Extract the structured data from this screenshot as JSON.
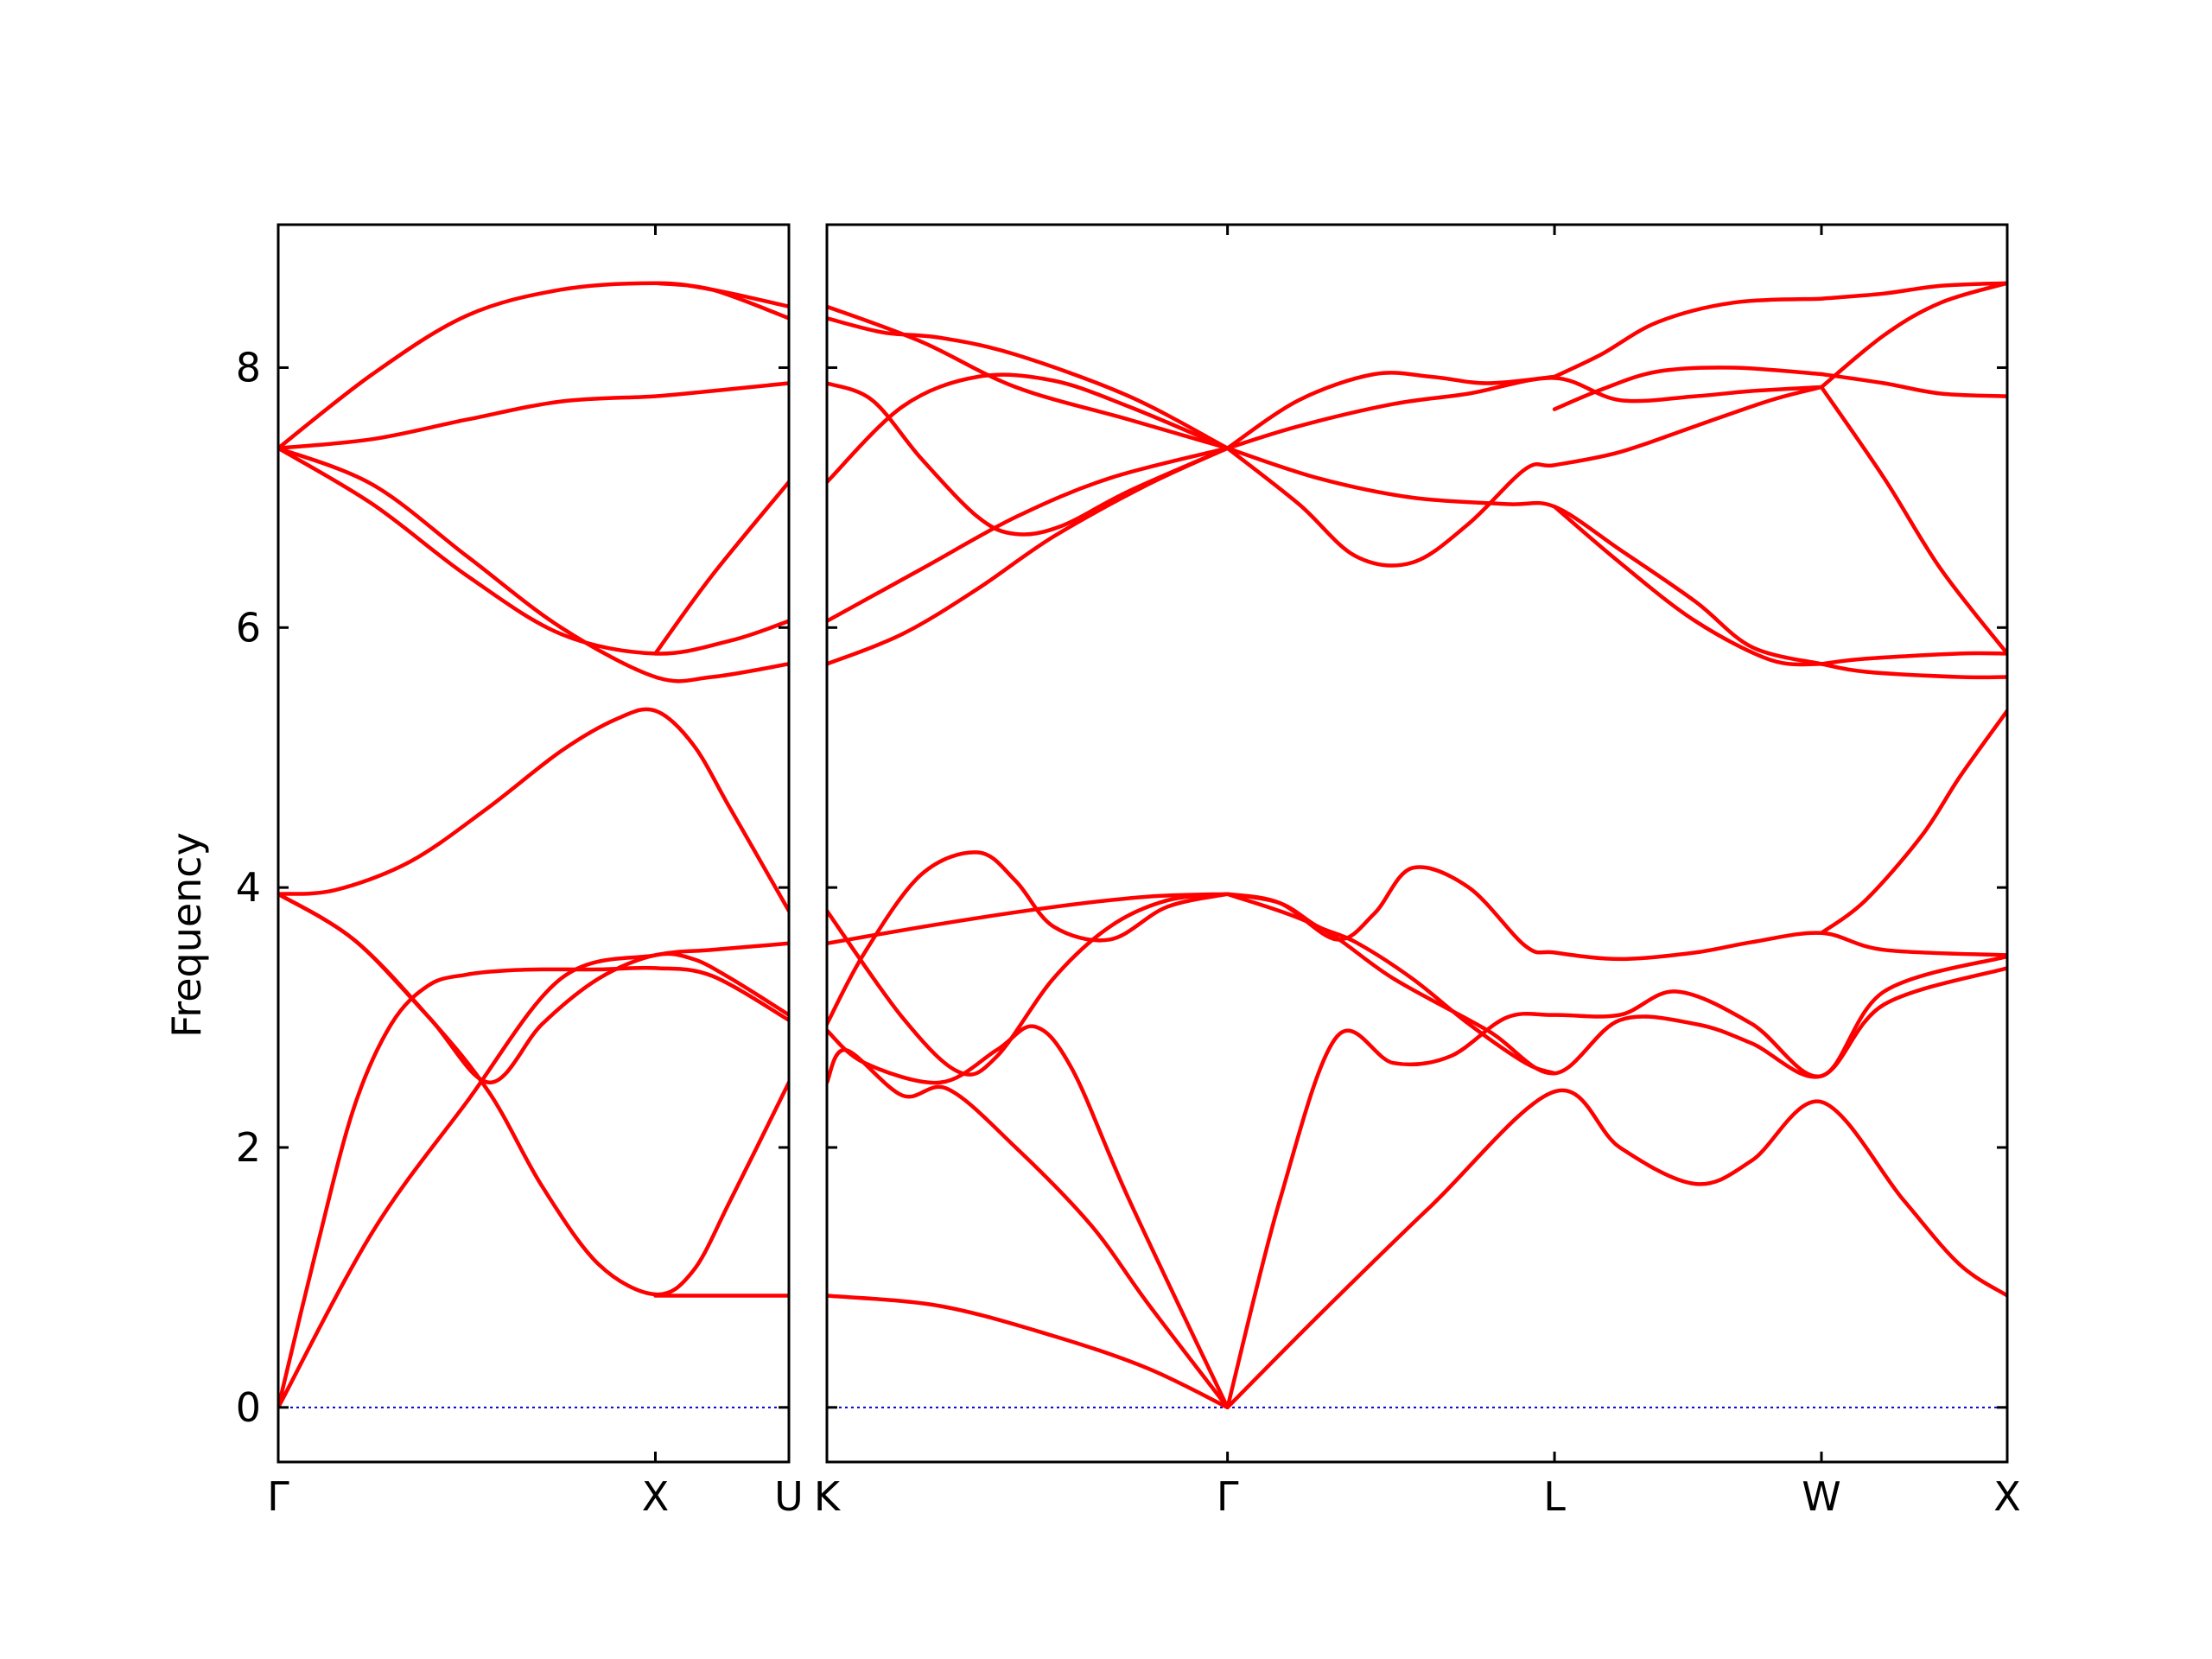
{
  "chart_data": {
    "type": "line",
    "title": "",
    "ylabel": "Frequency",
    "ylim": [
      -0.42,
      9.1
    ],
    "yticks": [
      0,
      2,
      4,
      6,
      8
    ],
    "grid": false,
    "legend": "none",
    "colors": {
      "bands": "#ff0000",
      "zero_line": "#0000cc",
      "frame": "#000000"
    },
    "panels": [
      {
        "id": "panel-1",
        "xlim": [
          0,
          1.354
        ],
        "xticks": [
          {
            "x": 0,
            "label": "Γ"
          },
          {
            "x": 1.0,
            "label": "X"
          },
          {
            "x": 1.354,
            "label": "U"
          }
        ],
        "zero_line": true,
        "series": [
          {
            "x": [
              0,
              0.25,
              0.5,
              0.75,
              1.0,
              1.15,
              1.354
            ],
            "y": [
              0,
              1.35,
              2.35,
              3.3,
              3.48,
              3.52,
              3.57
            ]
          },
          {
            "x": [
              0,
              0.1,
              0.2,
              0.3,
              0.4,
              0.5,
              0.6,
              0.7,
              0.85,
              1.0,
              1.15,
              1.354
            ],
            "y": [
              0,
              1.2,
              2.3,
              2.95,
              3.25,
              3.33,
              3.36,
              3.37,
              3.37,
              3.38,
              3.32,
              2.98
            ]
          },
          {
            "x": [
              0,
              0.2,
              0.4,
              0.56,
              0.7,
              0.85,
              1.0,
              1.1,
              1.2,
              1.354
            ],
            "y": [
              3.95,
              3.6,
              3.0,
              2.5,
              2.95,
              3.3,
              3.48,
              3.45,
              3.3,
              3.02
            ]
          },
          {
            "x": [
              0,
              0.2,
              0.4,
              0.56,
              0.7,
              0.85,
              1.0,
              1.1,
              1.2,
              1.354
            ],
            "y": [
              3.95,
              3.6,
              3.0,
              2.42,
              1.7,
              1.1,
              0.87,
              1.05,
              1.6,
              2.5
            ]
          },
          {
            "x": [
              0,
              0.15,
              0.35,
              0.55,
              0.75,
              0.9,
              1.0,
              1.1,
              1.2,
              1.354
            ],
            "y": [
              3.95,
              3.98,
              4.2,
              4.6,
              5.05,
              5.3,
              5.36,
              5.1,
              4.6,
              3.82
            ]
          },
          {
            "x": [
              1.0,
              1.2,
              1.354
            ],
            "y": [
              0.86,
              0.86,
              0.86
            ]
          },
          {
            "x": [
              0,
              0.25,
              0.5,
              0.75,
              1.0,
              1.15,
              1.354
            ],
            "y": [
              7.38,
              7.45,
              7.6,
              7.74,
              7.78,
              7.82,
              7.88
            ]
          },
          {
            "x": [
              0,
              0.25,
              0.5,
              0.75,
              1.0,
              1.15,
              1.354
            ],
            "y": [
              7.38,
              7.95,
              8.4,
              8.6,
              8.65,
              8.6,
              8.47
            ]
          },
          {
            "x": [
              0,
              0.25,
              0.5,
              0.75,
              1.0,
              1.15,
              1.354
            ],
            "y": [
              7.38,
              7.1,
              6.55,
              6.0,
              5.62,
              5.62,
              5.72
            ]
          },
          {
            "x": [
              0,
              0.25,
              0.5,
              0.75,
              1.0,
              1.2,
              1.354
            ],
            "y": [
              7.38,
              6.95,
              6.4,
              5.95,
              5.8,
              5.9,
              6.05
            ]
          },
          {
            "x": [
              1.0,
              1.15,
              1.354
            ],
            "y": [
              5.8,
              6.4,
              7.12
            ]
          },
          {
            "x": [
              1.0,
              1.15,
              1.354
            ],
            "y": [
              8.65,
              8.6,
              8.38
            ]
          }
        ]
      },
      {
        "id": "panel-2",
        "xlim": [
          0,
          3.126
        ],
        "xticks": [
          {
            "x": 0,
            "label": "K"
          },
          {
            "x": 1.061,
            "label": "Γ"
          },
          {
            "x": 1.927,
            "label": "L"
          },
          {
            "x": 2.634,
            "label": "W"
          },
          {
            "x": 3.126,
            "label": "X"
          }
        ],
        "zero_line": true,
        "series": [
          {
            "x": [
              0,
              0.3,
              0.6,
              0.85,
              1.061
            ],
            "y": [
              0.86,
              0.78,
              0.55,
              0.3,
              0.0
            ]
          },
          {
            "x": [
              1.061,
              1.3,
              1.6,
              1.927,
              2.1,
              2.3,
              2.45,
              2.634,
              2.85,
              3.0,
              3.126
            ],
            "y": [
              0.0,
              0.7,
              1.55,
              2.43,
              2.0,
              1.72,
              1.9,
              2.35,
              1.6,
              1.1,
              0.86
            ]
          },
          {
            "x": [
              0,
              0.05,
              0.2,
              0.32,
              0.5,
              0.7,
              0.85,
              1.061
            ],
            "y": [
              2.5,
              2.75,
              2.4,
              2.45,
              2.0,
              1.4,
              0.8,
              0.0
            ]
          },
          {
            "x": [
              0,
              0.1,
              0.3,
              0.45,
              0.55,
              0.65,
              0.8,
              1.061
            ],
            "y": [
              2.9,
              2.65,
              2.5,
              2.75,
              2.93,
              2.6,
              1.6,
              0.0
            ]
          },
          {
            "x": [
              1.061,
              1.2,
              1.35,
              1.5,
              1.65,
              1.8,
              1.927,
              2.1,
              2.25,
              2.45,
              2.634,
              2.8,
              3.126
            ],
            "y": [
              0.0,
              1.6,
              2.85,
              2.65,
              2.7,
              3.0,
              3.02,
              3.02,
              3.2,
              2.95,
              2.55,
              3.2,
              3.47
            ]
          },
          {
            "x": [
              1.061,
              1.3,
              1.5,
              1.75,
              1.927,
              2.1,
              2.3,
              2.45,
              2.634,
              2.8,
              3.126
            ],
            "y": [
              3.95,
              3.7,
              3.3,
              2.9,
              2.57,
              2.98,
              2.95,
              2.8,
              2.55,
              3.1,
              3.38
            ]
          },
          {
            "x": [
              0,
              0.2,
              0.35,
              0.45,
              0.6,
              0.75,
              0.9,
              1.061
            ],
            "y": [
              3.82,
              3.0,
              2.58,
              2.7,
              3.3,
              3.7,
              3.9,
              3.95
            ]
          },
          {
            "x": [
              0,
              0.1,
              0.25,
              0.4,
              0.5,
              0.6,
              0.75,
              0.9,
              1.061
            ],
            "y": [
              2.95,
              3.5,
              4.1,
              4.27,
              4.05,
              3.7,
              3.6,
              3.85,
              3.95
            ]
          },
          {
            "x": [
              0,
              0.3,
              0.6,
              0.85,
              1.061
            ],
            "y": [
              3.57,
              3.72,
              3.85,
              3.93,
              3.95
            ]
          },
          {
            "x": [
              1.061,
              1.2,
              1.35,
              1.45,
              1.55,
              1.7,
              1.85,
              1.927,
              2.1,
              2.3,
              2.45,
              2.634,
              2.8,
              3.126
            ],
            "y": [
              3.95,
              3.88,
              3.6,
              3.8,
              4.15,
              4.0,
              3.55,
              3.5,
              3.45,
              3.5,
              3.58,
              3.65,
              3.52,
              3.48
            ]
          },
          {
            "x": [
              1.061,
              1.2,
              1.3,
              1.4,
              1.55,
              1.7,
              1.85,
              1.927
            ],
            "y": [
              3.95,
              3.88,
              3.7,
              3.58,
              3.3,
              2.95,
              2.65,
              2.57
            ]
          },
          {
            "x": [
              2.634,
              2.75,
              2.9,
              3.0,
              3.126
            ],
            "y": [
              3.65,
              3.9,
              4.4,
              4.85,
              5.36
            ]
          },
          {
            "x": [
              0,
              0.2,
              0.4,
              0.6,
              0.85,
              1.061
            ],
            "y": [
              5.72,
              5.95,
              6.3,
              6.7,
              7.1,
              7.38
            ]
          },
          {
            "x": [
              0,
              0.25,
              0.5,
              0.75,
              1.061
            ],
            "y": [
              6.05,
              6.45,
              6.85,
              7.15,
              7.38
            ]
          },
          {
            "x": [
              0,
              0.2,
              0.4,
              0.6,
              0.8,
              1.061
            ],
            "y": [
              7.12,
              7.7,
              7.93,
              7.9,
              7.7,
              7.38
            ]
          },
          {
            "x": [
              0,
              0.12,
              0.25,
              0.4,
              0.5,
              0.62,
              0.8,
              1.061
            ],
            "y": [
              7.88,
              7.75,
              7.3,
              6.85,
              6.72,
              6.78,
              7.05,
              7.38
            ]
          },
          {
            "x": [
              0,
              0.25,
              0.5,
              0.8,
              1.061
            ],
            "y": [
              8.47,
              8.2,
              7.85,
              7.6,
              7.38
            ]
          },
          {
            "x": [
              0,
              0.15,
              0.3,
              0.5,
              0.8,
              1.061
            ],
            "y": [
              8.38,
              8.27,
              8.23,
              8.1,
              7.78,
              7.38
            ]
          },
          {
            "x": [
              1.061,
              1.25,
              1.5,
              1.7,
              1.927,
              2.1,
              2.3,
              2.45,
              2.634
            ],
            "y": [
              7.38,
              7.55,
              7.72,
              7.8,
              7.92,
              7.75,
              7.78,
              7.82,
              7.85
            ]
          },
          {
            "x": [
              1.061,
              1.25,
              1.45,
              1.6,
              1.75,
              1.927
            ],
            "y": [
              7.38,
              7.75,
              7.95,
              7.93,
              7.88,
              7.93
            ]
          },
          {
            "x": [
              1.061,
              1.3,
              1.55,
              1.8,
              1.927,
              2.1,
              2.3,
              2.45,
              2.634
            ],
            "y": [
              7.38,
              7.15,
              7.0,
              6.95,
              6.93,
              6.6,
              6.2,
              5.85,
              5.72
            ]
          },
          {
            "x": [
              1.061,
              1.25,
              1.4,
              1.55,
              1.7,
              1.85,
              1.927,
              2.1,
              2.3,
              2.5,
              2.634
            ],
            "y": [
              7.38,
              6.95,
              6.55,
              6.5,
              6.8,
              7.22,
              7.25,
              7.35,
              7.55,
              7.75,
              7.85
            ]
          },
          {
            "x": [
              1.927,
              2.1,
              2.3,
              2.5,
              2.634
            ],
            "y": [
              6.93,
              6.5,
              6.05,
              5.75,
              5.72
            ]
          },
          {
            "x": [
              1.927,
              2.05,
              2.2,
              2.4,
              2.634
            ],
            "y": [
              7.93,
              8.1,
              8.35,
              8.5,
              8.53
            ]
          },
          {
            "x": [
              1.927,
              2.05,
              2.2,
              2.4,
              2.634
            ],
            "y": [
              7.68,
              7.83,
              7.97,
              8.0,
              7.95
            ]
          },
          {
            "x": [
              2.634,
              2.8,
              2.95,
              3.126
            ],
            "y": [
              7.85,
              8.25,
              8.5,
              8.65
            ]
          },
          {
            "x": [
              2.634,
              2.8,
              2.95,
              3.126
            ],
            "y": [
              7.85,
              7.15,
              6.45,
              5.8
            ]
          },
          {
            "x": [
              2.634,
              2.8,
              2.95,
              3.126
            ],
            "y": [
              7.95,
              7.88,
              7.8,
              7.78
            ]
          },
          {
            "x": [
              2.634,
              2.75,
              3.0,
              3.126
            ],
            "y": [
              5.72,
              5.66,
              5.62,
              5.62
            ]
          },
          {
            "x": [
              2.634,
              2.75,
              3.0,
              3.126
            ],
            "y": [
              5.72,
              5.76,
              5.8,
              5.8
            ]
          },
          {
            "x": [
              2.634,
              2.8,
              2.95,
              3.126
            ],
            "y": [
              8.53,
              8.57,
              8.63,
              8.65
            ]
          }
        ]
      }
    ]
  }
}
